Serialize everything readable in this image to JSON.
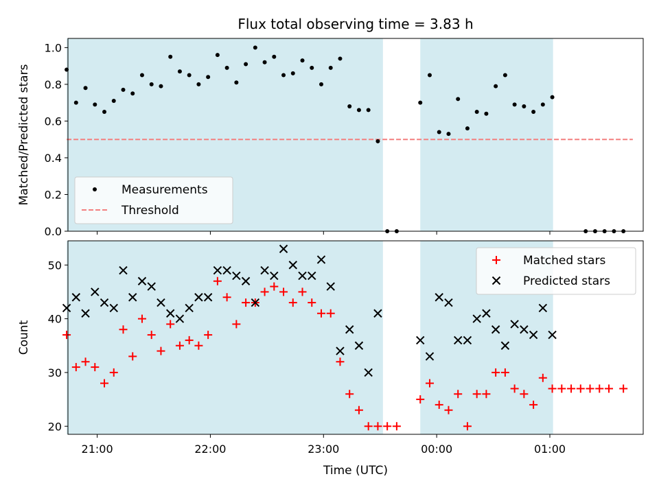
{
  "chart_data": {
    "title": "Flux total observing time = 3.83 h",
    "x_label": "Time (UTC)",
    "x_unit": "minutes after 20:00 UTC",
    "x_ticks": [
      {
        "value": 60,
        "label": "21:00"
      },
      {
        "value": 120,
        "label": "22:00"
      },
      {
        "value": 180,
        "label": "23:00"
      },
      {
        "value": 240,
        "label": "00:00"
      },
      {
        "value": 300,
        "label": "01:00"
      }
    ],
    "x_range": [
      44.5,
      349.5
    ],
    "shaded_intervals": [
      [
        43.8,
        211.5
      ],
      [
        231.3,
        301.7
      ]
    ],
    "shade_color": "#d4ebf1",
    "panels": [
      {
        "type": "scatter",
        "ylabel": "Matched/Predicted stars",
        "ylim": [
          0.0,
          1.05
        ],
        "yticks": [
          {
            "value": 0.0,
            "label": "0.0"
          },
          {
            "value": 0.2,
            "label": "0.2"
          },
          {
            "value": 0.4,
            "label": "0.4"
          },
          {
            "value": 0.6,
            "label": "0.6"
          },
          {
            "value": 0.8,
            "label": "0.8"
          },
          {
            "value": 1.0,
            "label": "1.0"
          }
        ],
        "threshold": {
          "name": "Threshold",
          "value": 0.5,
          "x_range": [
            43.8,
            344.0
          ],
          "color": "#f37f7f"
        },
        "series": [
          {
            "name": "Measurements",
            "color": "#000000",
            "marker": "dot",
            "points": [
              [
                43.8,
                0.88
              ],
              [
                48.8,
                0.7
              ],
              [
                53.8,
                0.78
              ],
              [
                58.8,
                0.69
              ],
              [
                63.8,
                0.65
              ],
              [
                68.8,
                0.71
              ],
              [
                73.8,
                0.77
              ],
              [
                78.8,
                0.75
              ],
              [
                83.8,
                0.85
              ],
              [
                88.8,
                0.8
              ],
              [
                93.8,
                0.79
              ],
              [
                98.8,
                0.95
              ],
              [
                103.8,
                0.87
              ],
              [
                108.8,
                0.85
              ],
              [
                113.8,
                0.8
              ],
              [
                118.8,
                0.84
              ],
              [
                123.8,
                0.96
              ],
              [
                128.8,
                0.89
              ],
              [
                133.8,
                0.81
              ],
              [
                138.8,
                0.91
              ],
              [
                143.8,
                1.0
              ],
              [
                148.8,
                0.92
              ],
              [
                153.8,
                0.95
              ],
              [
                158.8,
                0.85
              ],
              [
                163.8,
                0.86
              ],
              [
                168.8,
                0.93
              ],
              [
                173.8,
                0.89
              ],
              [
                178.8,
                0.8
              ],
              [
                183.8,
                0.89
              ],
              [
                188.8,
                0.94
              ],
              [
                193.8,
                0.68
              ],
              [
                198.8,
                0.66
              ],
              [
                203.8,
                0.66
              ],
              [
                208.8,
                0.49
              ],
              [
                213.8,
                0.0
              ],
              [
                218.8,
                0.0
              ],
              [
                231.3,
                0.7
              ],
              [
                236.3,
                0.85
              ],
              [
                241.3,
                0.54
              ],
              [
                246.3,
                0.53
              ],
              [
                251.3,
                0.72
              ],
              [
                256.3,
                0.56
              ],
              [
                261.3,
                0.65
              ],
              [
                266.3,
                0.64
              ],
              [
                271.3,
                0.79
              ],
              [
                276.3,
                0.85
              ],
              [
                281.3,
                0.69
              ],
              [
                286.3,
                0.68
              ],
              [
                291.3,
                0.65
              ],
              [
                296.3,
                0.69
              ],
              [
                301.3,
                0.73
              ],
              [
                319.0,
                0.0
              ],
              [
                324.0,
                0.0
              ],
              [
                329.0,
                0.0
              ],
              [
                334.0,
                0.0
              ],
              [
                339.0,
                0.0
              ]
            ]
          }
        ],
        "legend_position": "lower-left"
      },
      {
        "type": "scatter",
        "ylabel": "Count",
        "ylim": [
          18.5,
          54.5
        ],
        "yticks": [
          {
            "value": 20,
            "label": "20"
          },
          {
            "value": 30,
            "label": "30"
          },
          {
            "value": 40,
            "label": "40"
          },
          {
            "value": 50,
            "label": "50"
          }
        ],
        "series": [
          {
            "name": "Matched stars",
            "color": "#ff0000",
            "marker": "plus",
            "points": [
              [
                43.8,
                37
              ],
              [
                48.8,
                31
              ],
              [
                53.8,
                32
              ],
              [
                58.8,
                31
              ],
              [
                63.8,
                28
              ],
              [
                68.8,
                30
              ],
              [
                73.8,
                38
              ],
              [
                78.8,
                33
              ],
              [
                83.8,
                40
              ],
              [
                88.8,
                37
              ],
              [
                93.8,
                34
              ],
              [
                98.8,
                39
              ],
              [
                103.8,
                35
              ],
              [
                108.8,
                36
              ],
              [
                113.8,
                35
              ],
              [
                118.8,
                37
              ],
              [
                123.8,
                47
              ],
              [
                128.8,
                44
              ],
              [
                133.8,
                39
              ],
              [
                138.8,
                43
              ],
              [
                143.8,
                43
              ],
              [
                148.8,
                45
              ],
              [
                153.8,
                46
              ],
              [
                158.8,
                45
              ],
              [
                163.8,
                43
              ],
              [
                168.8,
                45
              ],
              [
                173.8,
                43
              ],
              [
                178.8,
                41
              ],
              [
                183.8,
                41
              ],
              [
                188.8,
                32
              ],
              [
                193.8,
                26
              ],
              [
                198.8,
                23
              ],
              [
                203.8,
                20
              ],
              [
                208.8,
                20
              ],
              [
                213.8,
                20
              ],
              [
                218.8,
                20
              ],
              [
                231.3,
                25
              ],
              [
                236.3,
                28
              ],
              [
                241.3,
                24
              ],
              [
                246.3,
                23
              ],
              [
                251.3,
                26
              ],
              [
                256.3,
                20
              ],
              [
                261.3,
                26
              ],
              [
                266.3,
                26
              ],
              [
                271.3,
                30
              ],
              [
                276.3,
                30
              ],
              [
                281.3,
                27
              ],
              [
                286.3,
                26
              ],
              [
                291.3,
                24
              ],
              [
                296.3,
                29
              ],
              [
                301.3,
                27
              ],
              [
                306.3,
                27
              ],
              [
                311.3,
                27
              ],
              [
                316.3,
                27
              ],
              [
                321.3,
                27
              ],
              [
                326.3,
                27
              ],
              [
                331.3,
                27
              ],
              [
                339.0,
                27
              ]
            ]
          },
          {
            "name": "Predicted stars",
            "color": "#000000",
            "marker": "x",
            "points": [
              [
                43.8,
                42
              ],
              [
                48.8,
                44
              ],
              [
                53.8,
                41
              ],
              [
                58.8,
                45
              ],
              [
                63.8,
                43
              ],
              [
                68.8,
                42
              ],
              [
                73.8,
                49
              ],
              [
                78.8,
                44
              ],
              [
                83.8,
                47
              ],
              [
                88.8,
                46
              ],
              [
                93.8,
                43
              ],
              [
                98.8,
                41
              ],
              [
                103.8,
                40
              ],
              [
                108.8,
                42
              ],
              [
                113.8,
                44
              ],
              [
                118.8,
                44
              ],
              [
                123.8,
                49
              ],
              [
                128.8,
                49
              ],
              [
                133.8,
                48
              ],
              [
                138.8,
                47
              ],
              [
                143.8,
                43
              ],
              [
                148.8,
                49
              ],
              [
                153.8,
                48
              ],
              [
                158.8,
                53
              ],
              [
                163.8,
                50
              ],
              [
                168.8,
                48
              ],
              [
                173.8,
                48
              ],
              [
                178.8,
                51
              ],
              [
                183.8,
                46
              ],
              [
                188.8,
                34
              ],
              [
                193.8,
                38
              ],
              [
                198.8,
                35
              ],
              [
                203.8,
                30
              ],
              [
                208.8,
                41
              ],
              [
                231.3,
                36
              ],
              [
                236.3,
                33
              ],
              [
                241.3,
                44
              ],
              [
                246.3,
                43
              ],
              [
                251.3,
                36
              ],
              [
                256.3,
                36
              ],
              [
                261.3,
                40
              ],
              [
                266.3,
                41
              ],
              [
                271.3,
                38
              ],
              [
                276.3,
                35
              ],
              [
                281.3,
                39
              ],
              [
                286.3,
                38
              ],
              [
                291.3,
                37
              ],
              [
                296.3,
                42
              ],
              [
                301.3,
                37
              ]
            ]
          }
        ],
        "legend_position": "upper-right"
      }
    ]
  }
}
